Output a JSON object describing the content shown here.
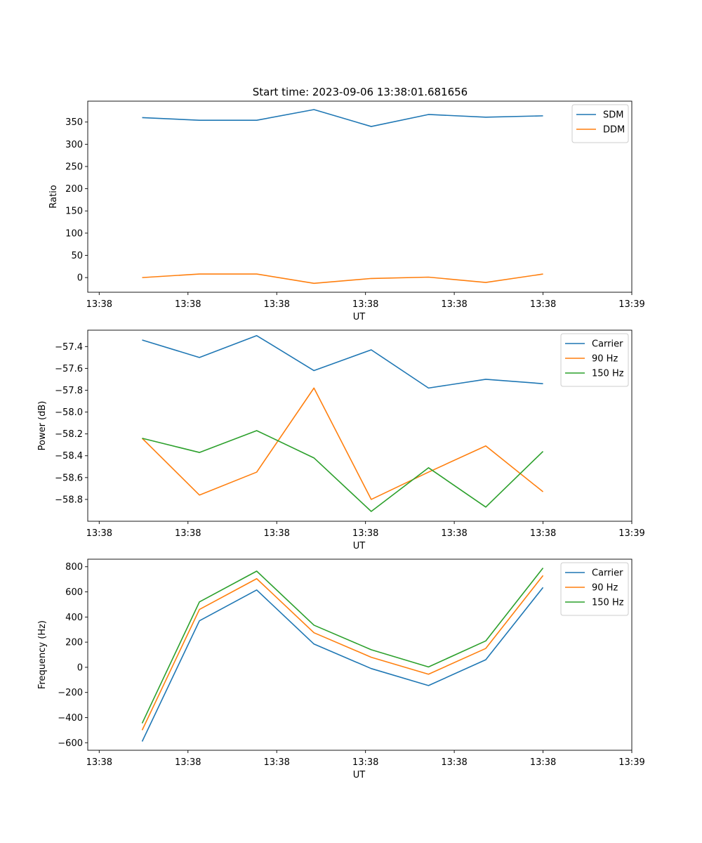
{
  "figure": {
    "title": "Start time: 2023-09-06 13:38:01.681656"
  },
  "chart_data": [
    {
      "type": "line",
      "xlabel": "UT",
      "ylabel": "Ratio",
      "x": [
        1,
        2,
        3,
        4,
        5,
        6,
        7,
        8
      ],
      "x_ticks": [
        0.25,
        1.8,
        3.35,
        4.9,
        6.45,
        8.0,
        9.55
      ],
      "x_tick_labels": [
        "13:38",
        "13:38",
        "13:38",
        "13:38",
        "13:38",
        "13:38",
        "13:39"
      ],
      "xlim": [
        0.05,
        9.55
      ],
      "ylim": [
        -33,
        397
      ],
      "y_ticks": [
        0,
        50,
        100,
        150,
        200,
        250,
        300,
        350
      ],
      "y_tick_labels": [
        "0",
        "50",
        "100",
        "150",
        "200",
        "250",
        "300",
        "350"
      ],
      "legend": "top-right",
      "grid": false,
      "series": [
        {
          "name": "SDM",
          "color": "#1f77b4",
          "values": [
            360,
            354,
            354,
            378,
            340,
            367,
            361,
            364
          ]
        },
        {
          "name": "DDM",
          "color": "#ff7f0e",
          "values": [
            0,
            8,
            8,
            -13,
            -2,
            1,
            -11,
            8
          ]
        }
      ]
    },
    {
      "type": "line",
      "xlabel": "UT",
      "ylabel": "Power (dB)",
      "x": [
        1,
        2,
        3,
        4,
        5,
        6,
        7,
        8
      ],
      "x_ticks": [
        0.25,
        1.8,
        3.35,
        4.9,
        6.45,
        8.0,
        9.55
      ],
      "x_tick_labels": [
        "13:38",
        "13:38",
        "13:38",
        "13:38",
        "13:38",
        "13:38",
        "13:39"
      ],
      "xlim": [
        0.05,
        9.55
      ],
      "ylim": [
        -59.0,
        -57.25
      ],
      "y_ticks": [
        -58.8,
        -58.6,
        -58.4,
        -58.2,
        -58.0,
        -57.8,
        -57.6,
        -57.4
      ],
      "y_tick_labels": [
        "−58.8",
        "−58.6",
        "−58.4",
        "−58.2",
        "−58.0",
        "−57.8",
        "−57.6",
        "−57.4"
      ],
      "legend": "top-right",
      "grid": false,
      "series": [
        {
          "name": "Carrier",
          "color": "#1f77b4",
          "values": [
            -57.34,
            -57.5,
            -57.3,
            -57.62,
            -57.43,
            -57.78,
            -57.7,
            -57.74
          ]
        },
        {
          "name": "90 Hz",
          "color": "#ff7f0e",
          "values": [
            -58.24,
            -58.76,
            -58.55,
            -57.78,
            -58.8,
            -58.55,
            -58.31,
            -58.73
          ]
        },
        {
          "name": "150 Hz",
          "color": "#2ca02c",
          "values": [
            -58.24,
            -58.37,
            -58.17,
            -58.42,
            -58.91,
            -58.51,
            -58.87,
            -58.36
          ]
        }
      ]
    },
    {
      "type": "line",
      "xlabel": "UT",
      "ylabel": "Frequency (Hz)",
      "x": [
        1,
        2,
        3,
        4,
        5,
        6,
        7,
        8
      ],
      "x_ticks": [
        0.25,
        1.8,
        3.35,
        4.9,
        6.45,
        8.0,
        9.55
      ],
      "x_tick_labels": [
        "13:38",
        "13:38",
        "13:38",
        "13:38",
        "13:38",
        "13:38",
        "13:39"
      ],
      "xlim": [
        0.05,
        9.55
      ],
      "ylim": [
        -660,
        860
      ],
      "y_ticks": [
        -600,
        -400,
        -200,
        0,
        200,
        400,
        600,
        800
      ],
      "y_tick_labels": [
        "−600",
        "−400",
        "−200",
        "0",
        "200",
        "400",
        "600",
        "800"
      ],
      "legend": "top-right",
      "grid": false,
      "series": [
        {
          "name": "Carrier",
          "color": "#1f77b4",
          "values": [
            -590,
            370,
            615,
            185,
            -10,
            -145,
            60,
            635
          ]
        },
        {
          "name": "90 Hz",
          "color": "#ff7f0e",
          "values": [
            -500,
            460,
            705,
            275,
            80,
            -55,
            150,
            730
          ]
        },
        {
          "name": "150 Hz",
          "color": "#2ca02c",
          "values": [
            -445,
            520,
            765,
            335,
            140,
            3,
            210,
            790
          ]
        }
      ]
    }
  ]
}
